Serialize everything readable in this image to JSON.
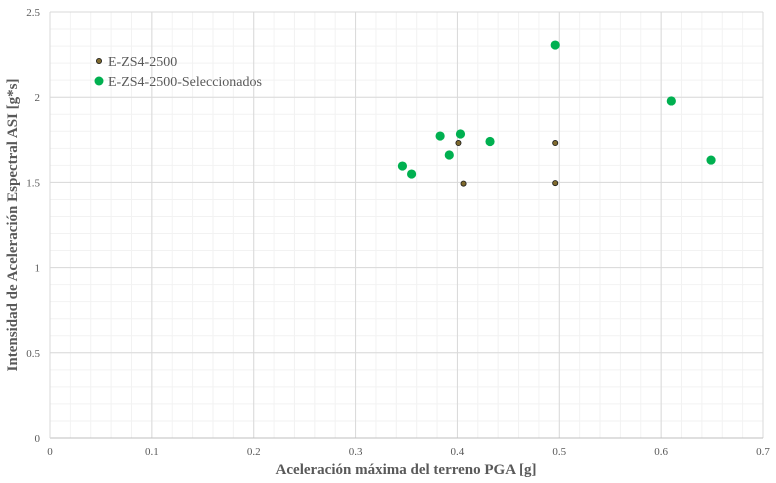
{
  "chart_data": {
    "type": "scatter",
    "title": "",
    "xlabel": "Aceleración máxima del terreno PGA [g]",
    "ylabel": "Intensidad de Aceleración Espectral ASI [g*s]",
    "xlim": [
      0,
      0.7
    ],
    "ylim": [
      0,
      2.5
    ],
    "x_ticks": [
      "0",
      "0.1",
      "0.2",
      "0.3",
      "0.4",
      "0.5",
      "0.6",
      "0.7"
    ],
    "y_ticks": [
      "0",
      "0.5",
      "1",
      "1.5",
      "2",
      "2.5"
    ],
    "grid": true,
    "legend_position": "top-left",
    "series": [
      {
        "name": "E-ZS4-2500",
        "color": "#7f6a2e",
        "edge_color": "#1a1a1a",
        "points": [
          [
            0.401,
            1.731
          ],
          [
            0.406,
            1.493
          ],
          [
            0.496,
            1.731
          ],
          [
            0.496,
            1.496
          ]
        ]
      },
      {
        "name": "E-ZS4-2500-Seleccionados",
        "color": "#00b050",
        "points": [
          [
            0.346,
            1.596
          ],
          [
            0.355,
            1.549
          ],
          [
            0.383,
            1.772
          ],
          [
            0.392,
            1.661
          ],
          [
            0.403,
            1.784
          ],
          [
            0.432,
            1.74
          ],
          [
            0.496,
            2.306
          ],
          [
            0.61,
            1.978
          ],
          [
            0.649,
            1.631
          ]
        ]
      }
    ]
  }
}
